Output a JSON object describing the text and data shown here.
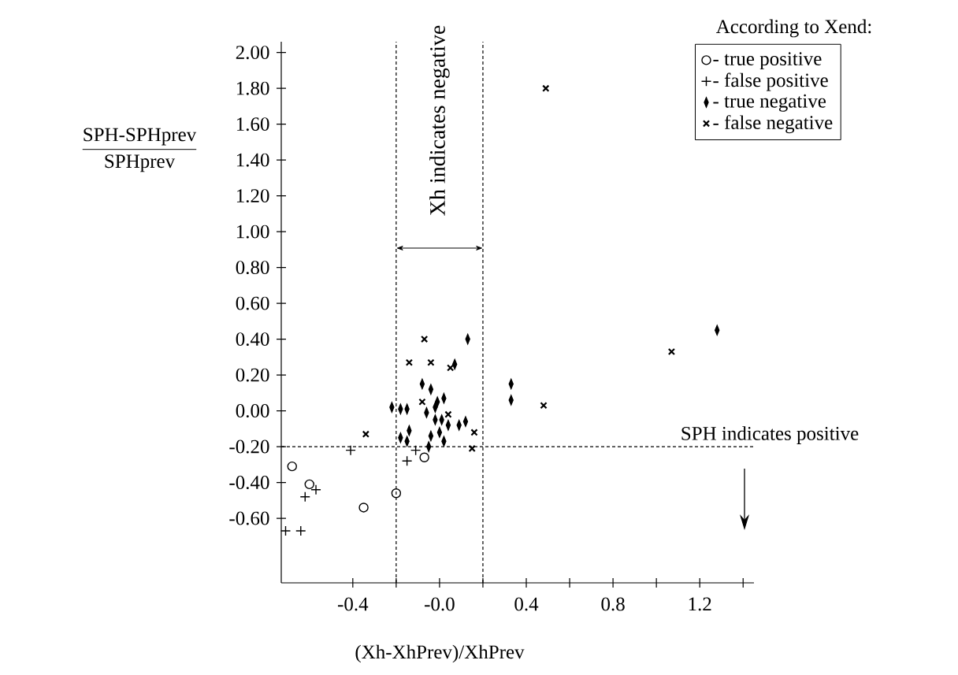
{
  "chart_data": {
    "type": "scatter",
    "xlabel": "(Xh-XhPrev)/XhPrev",
    "ylabel": "\\dfrac{\\text{SPH-SPHprev}}{\\text{SPHprev}}",
    "legend_title": "According to Xend:",
    "legend": "top right",
    "xlim": [
      -0.73,
      1.45
    ],
    "ylim": [
      -0.96,
      2.06
    ],
    "xticks": [
      {
        "value": -0.4,
        "label": "-0.4"
      },
      {
        "value": -0.2,
        "label": null
      },
      {
        "value": 0,
        "label": "-0.0"
      },
      {
        "value": 0.2,
        "label": null
      },
      {
        "value": 0.4,
        "label": "0.4"
      },
      {
        "value": 0.6,
        "label": null
      },
      {
        "value": 0.8,
        "label": "0.8"
      },
      {
        "value": 1.0,
        "label": null
      },
      {
        "value": 1.2,
        "label": "1.2"
      },
      {
        "value": 1.4,
        "label": null
      }
    ],
    "yticks": [
      {
        "value": -0.6,
        "label": "-0.60"
      },
      {
        "value": -0.4,
        "label": "-0.40"
      },
      {
        "value": -0.2,
        "label": "-0.20"
      },
      {
        "value": 0,
        "label": "0.00"
      },
      {
        "value": 0.2,
        "label": "0.20"
      },
      {
        "value": 0.4,
        "label": "0.40"
      },
      {
        "value": 0.6,
        "label": "0.60"
      },
      {
        "value": 0.8,
        "label": "0.80"
      },
      {
        "value": 1.0,
        "label": "1.00"
      },
      {
        "value": 1.2,
        "label": "1.20"
      },
      {
        "value": 1.4,
        "label": "1.40"
      },
      {
        "value": 1.6,
        "label": "1.60"
      },
      {
        "value": 1.8,
        "label": "1.80"
      },
      {
        "value": 2.0,
        "label": "2.00"
      }
    ],
    "ref_lines": [
      {
        "axis": "x",
        "value": -0.2,
        "line_style": "dashed"
      },
      {
        "axis": "x",
        "value": 0.2,
        "line_style": "dashed"
      },
      {
        "axis": "y",
        "value": -0.2,
        "line_style": "dashed",
        "label": "SPH indicates positive"
      }
    ],
    "annotations": [
      "Xh indicates negative"
    ],
    "series": [
      {
        "name": "- true positive",
        "color": "#000000",
        "marker": "circle",
        "x": [
          -0.68,
          -0.6,
          -0.35,
          -0.2,
          -0.07
        ],
        "values": [
          -0.31,
          -0.41,
          -0.54,
          -0.46,
          -0.26
        ]
      },
      {
        "name": "- false positive",
        "color": "#000000",
        "marker": "cross",
        "x": [
          -0.71,
          -0.64,
          -0.62,
          -0.57,
          -0.41,
          -0.15,
          -0.11
        ],
        "values": [
          -0.67,
          -0.67,
          -0.48,
          -0.44,
          -0.22,
          -0.28,
          -0.22
        ]
      },
      {
        "name": "- true negative",
        "color": "#000000",
        "marker": "diamond",
        "x": [
          1.28,
          0.33,
          0.33,
          0.13,
          0.07,
          -0.08,
          -0.04,
          -0.22,
          -0.18,
          -0.15,
          -0.01,
          0.02,
          -0.02,
          -0.06,
          -0.02,
          0.01,
          0.04,
          0.09,
          0.12,
          -0.14,
          -0.18,
          -0.15,
          -0.04,
          0.0,
          0.02,
          -0.05
        ],
        "values": [
          0.45,
          0.15,
          0.06,
          0.4,
          0.26,
          0.15,
          0.12,
          0.02,
          0.01,
          0.01,
          0.05,
          0.07,
          0.02,
          -0.01,
          -0.05,
          -0.05,
          -0.08,
          -0.08,
          -0.06,
          -0.11,
          -0.15,
          -0.17,
          -0.14,
          -0.12,
          -0.17,
          -0.2
        ]
      },
      {
        "name": "- false negative",
        "color": "#000000",
        "marker": "x",
        "x": [
          -0.07,
          -0.14,
          -0.04,
          0.05,
          -0.08,
          0.04,
          0.16,
          -0.34,
          0.15,
          0.49,
          1.07,
          0.48
        ],
        "values": [
          0.4,
          0.27,
          0.27,
          0.24,
          0.05,
          -0.02,
          -0.12,
          -0.13,
          -0.21,
          1.8,
          0.33,
          0.03
        ]
      }
    ]
  }
}
